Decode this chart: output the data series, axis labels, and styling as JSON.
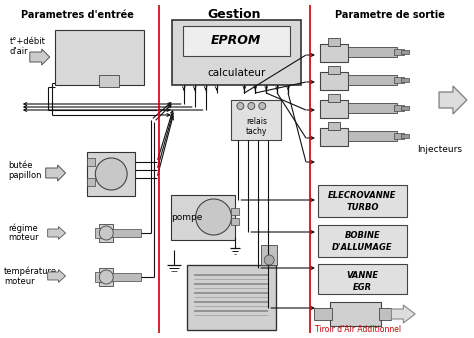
{
  "title_left": "Parametres d'entrée",
  "title_center": "Gestion",
  "title_right": "Parametre de sortie",
  "eprom_label1": "EPROM",
  "eprom_label2": "calculateur",
  "relais_label1": "relais",
  "relais_label2": "tachy",
  "pompe_label": "pompe",
  "injecteurs_label": "Injecteurs",
  "elecrovanne_label1": "ELECROVANNE",
  "elecrovanne_label2": "TURBO",
  "bobine_label1": "BOBINE",
  "bobine_label2": "D'ALLUMAGE",
  "vanne_label1": "VANNE",
  "vanne_label2": "EGR",
  "tiroir_label": "Tiroir d'Air Additionnel",
  "input_label0_l1": "t°+débit",
  "input_label0_l2": "d'air",
  "input_label1_l1": "butée",
  "input_label1_l2": "papillon",
  "input_label2_l1": "régime",
  "input_label2_l2": "moteur",
  "input_label3_l1": "température",
  "input_label3_l2": "moteur",
  "bg_color": "#ffffff",
  "line_color": "#111111",
  "red_line_color": "#cc0000",
  "box_fill_light": "#e8e8e8",
  "box_fill_mid": "#d0d0d0",
  "box_edge": "#333333"
}
